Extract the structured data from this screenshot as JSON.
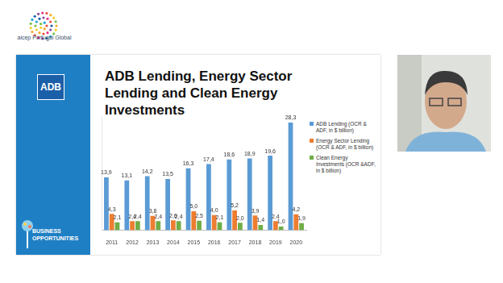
{
  "page": {
    "logo_text": "aicep Portugal Global",
    "badge": "ADB",
    "footer": "BUSINESS OPPORTUNITIES"
  },
  "chart_data": {
    "type": "bar",
    "title": "ADB Lending, Energy Sector Lending and Clean Energy Investments",
    "categories": [
      "2011",
      "2012",
      "2013",
      "2014",
      "2015",
      "2016",
      "2017",
      "2018",
      "2019",
      "2020"
    ],
    "series": [
      {
        "name": "ADB Lending (OCR & ADF, in $ billion)",
        "color": "#5b9bd5",
        "values": [
          13.9,
          13.1,
          14.2,
          13.5,
          16.3,
          17.4,
          18.6,
          18.9,
          19.6,
          28.3
        ],
        "value_labels": [
          "13,9",
          "13,1",
          "14,2",
          "13,5",
          "16,3",
          "17,4",
          "18,6",
          "18,9",
          "19,6",
          "28,3"
        ]
      },
      {
        "name": "Energy Sector Lending (OCR & ADF, in $ billion)",
        "color": "#ed7d31",
        "values": [
          4.3,
          2.4,
          3.8,
          2.6,
          5.0,
          4.0,
          5.2,
          3.9,
          2.4,
          4.2
        ],
        "value_labels": [
          "4,3",
          "2,4",
          "3,8",
          "2,6",
          "5,0",
          "4,0",
          "5,2",
          "3,9",
          "2,4",
          "4,2"
        ]
      },
      {
        "name": "Clean Energy Investments (OCR &ADF, in $ billion)",
        "color": "#70ad47",
        "values": [
          2.1,
          2.4,
          2.4,
          2.4,
          2.5,
          2.1,
          2.0,
          1.4,
          1.0,
          1.9
        ],
        "value_labels": [
          "2,1",
          "2,4",
          "2,4",
          "2,4",
          "2,5",
          "2,1",
          "2,0",
          "1,4",
          "1,0",
          "1,9"
        ]
      }
    ],
    "ylim": [
      0,
      30
    ],
    "grid": false,
    "legend": "right",
    "data_labels": true,
    "tick_labels": "x"
  }
}
